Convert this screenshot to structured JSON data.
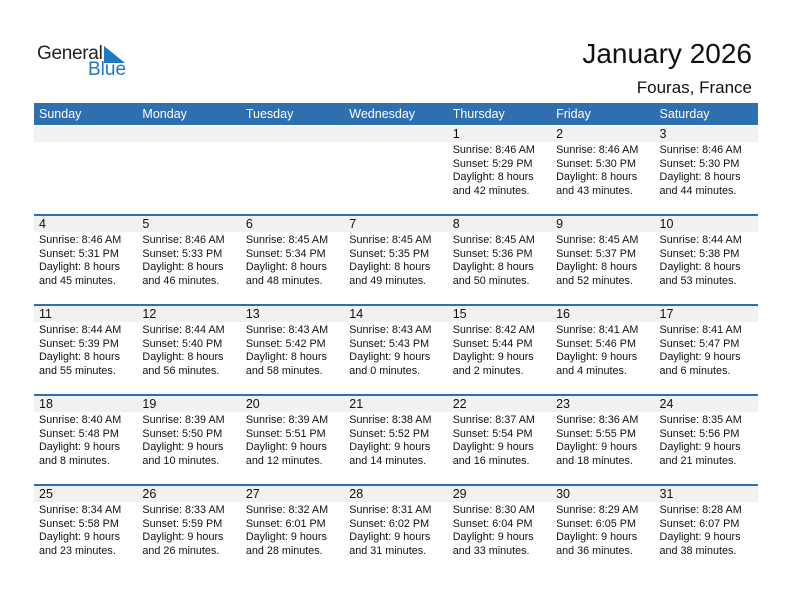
{
  "logo": {
    "text1": "General",
    "text2": "Blue",
    "color": "#1f78c1"
  },
  "header": {
    "title": "January 2026",
    "location": "Fouras, France"
  },
  "weekdays": [
    "Sunday",
    "Monday",
    "Tuesday",
    "Wednesday",
    "Thursday",
    "Friday",
    "Saturday"
  ],
  "colors": {
    "header_bg": "#2e6fb0",
    "date_strip": "#f1f1f1"
  },
  "weeks": [
    [
      null,
      null,
      null,
      null,
      {
        "day": "1",
        "sunrise": "Sunrise: 8:46 AM",
        "sunset": "Sunset: 5:29 PM",
        "daylight1": "Daylight: 8 hours",
        "daylight2": "and 42 minutes."
      },
      {
        "day": "2",
        "sunrise": "Sunrise: 8:46 AM",
        "sunset": "Sunset: 5:30 PM",
        "daylight1": "Daylight: 8 hours",
        "daylight2": "and 43 minutes."
      },
      {
        "day": "3",
        "sunrise": "Sunrise: 8:46 AM",
        "sunset": "Sunset: 5:30 PM",
        "daylight1": "Daylight: 8 hours",
        "daylight2": "and 44 minutes."
      }
    ],
    [
      {
        "day": "4",
        "sunrise": "Sunrise: 8:46 AM",
        "sunset": "Sunset: 5:31 PM",
        "daylight1": "Daylight: 8 hours",
        "daylight2": "and 45 minutes."
      },
      {
        "day": "5",
        "sunrise": "Sunrise: 8:46 AM",
        "sunset": "Sunset: 5:33 PM",
        "daylight1": "Daylight: 8 hours",
        "daylight2": "and 46 minutes."
      },
      {
        "day": "6",
        "sunrise": "Sunrise: 8:45 AM",
        "sunset": "Sunset: 5:34 PM",
        "daylight1": "Daylight: 8 hours",
        "daylight2": "and 48 minutes."
      },
      {
        "day": "7",
        "sunrise": "Sunrise: 8:45 AM",
        "sunset": "Sunset: 5:35 PM",
        "daylight1": "Daylight: 8 hours",
        "daylight2": "and 49 minutes."
      },
      {
        "day": "8",
        "sunrise": "Sunrise: 8:45 AM",
        "sunset": "Sunset: 5:36 PM",
        "daylight1": "Daylight: 8 hours",
        "daylight2": "and 50 minutes."
      },
      {
        "day": "9",
        "sunrise": "Sunrise: 8:45 AM",
        "sunset": "Sunset: 5:37 PM",
        "daylight1": "Daylight: 8 hours",
        "daylight2": "and 52 minutes."
      },
      {
        "day": "10",
        "sunrise": "Sunrise: 8:44 AM",
        "sunset": "Sunset: 5:38 PM",
        "daylight1": "Daylight: 8 hours",
        "daylight2": "and 53 minutes."
      }
    ],
    [
      {
        "day": "11",
        "sunrise": "Sunrise: 8:44 AM",
        "sunset": "Sunset: 5:39 PM",
        "daylight1": "Daylight: 8 hours",
        "daylight2": "and 55 minutes."
      },
      {
        "day": "12",
        "sunrise": "Sunrise: 8:44 AM",
        "sunset": "Sunset: 5:40 PM",
        "daylight1": "Daylight: 8 hours",
        "daylight2": "and 56 minutes."
      },
      {
        "day": "13",
        "sunrise": "Sunrise: 8:43 AM",
        "sunset": "Sunset: 5:42 PM",
        "daylight1": "Daylight: 8 hours",
        "daylight2": "and 58 minutes."
      },
      {
        "day": "14",
        "sunrise": "Sunrise: 8:43 AM",
        "sunset": "Sunset: 5:43 PM",
        "daylight1": "Daylight: 9 hours",
        "daylight2": "and 0 minutes."
      },
      {
        "day": "15",
        "sunrise": "Sunrise: 8:42 AM",
        "sunset": "Sunset: 5:44 PM",
        "daylight1": "Daylight: 9 hours",
        "daylight2": "and 2 minutes."
      },
      {
        "day": "16",
        "sunrise": "Sunrise: 8:41 AM",
        "sunset": "Sunset: 5:46 PM",
        "daylight1": "Daylight: 9 hours",
        "daylight2": "and 4 minutes."
      },
      {
        "day": "17",
        "sunrise": "Sunrise: 8:41 AM",
        "sunset": "Sunset: 5:47 PM",
        "daylight1": "Daylight: 9 hours",
        "daylight2": "and 6 minutes."
      }
    ],
    [
      {
        "day": "18",
        "sunrise": "Sunrise: 8:40 AM",
        "sunset": "Sunset: 5:48 PM",
        "daylight1": "Daylight: 9 hours",
        "daylight2": "and 8 minutes."
      },
      {
        "day": "19",
        "sunrise": "Sunrise: 8:39 AM",
        "sunset": "Sunset: 5:50 PM",
        "daylight1": "Daylight: 9 hours",
        "daylight2": "and 10 minutes."
      },
      {
        "day": "20",
        "sunrise": "Sunrise: 8:39 AM",
        "sunset": "Sunset: 5:51 PM",
        "daylight1": "Daylight: 9 hours",
        "daylight2": "and 12 minutes."
      },
      {
        "day": "21",
        "sunrise": "Sunrise: 8:38 AM",
        "sunset": "Sunset: 5:52 PM",
        "daylight1": "Daylight: 9 hours",
        "daylight2": "and 14 minutes."
      },
      {
        "day": "22",
        "sunrise": "Sunrise: 8:37 AM",
        "sunset": "Sunset: 5:54 PM",
        "daylight1": "Daylight: 9 hours",
        "daylight2": "and 16 minutes."
      },
      {
        "day": "23",
        "sunrise": "Sunrise: 8:36 AM",
        "sunset": "Sunset: 5:55 PM",
        "daylight1": "Daylight: 9 hours",
        "daylight2": "and 18 minutes."
      },
      {
        "day": "24",
        "sunrise": "Sunrise: 8:35 AM",
        "sunset": "Sunset: 5:56 PM",
        "daylight1": "Daylight: 9 hours",
        "daylight2": "and 21 minutes."
      }
    ],
    [
      {
        "day": "25",
        "sunrise": "Sunrise: 8:34 AM",
        "sunset": "Sunset: 5:58 PM",
        "daylight1": "Daylight: 9 hours",
        "daylight2": "and 23 minutes."
      },
      {
        "day": "26",
        "sunrise": "Sunrise: 8:33 AM",
        "sunset": "Sunset: 5:59 PM",
        "daylight1": "Daylight: 9 hours",
        "daylight2": "and 26 minutes."
      },
      {
        "day": "27",
        "sunrise": "Sunrise: 8:32 AM",
        "sunset": "Sunset: 6:01 PM",
        "daylight1": "Daylight: 9 hours",
        "daylight2": "and 28 minutes."
      },
      {
        "day": "28",
        "sunrise": "Sunrise: 8:31 AM",
        "sunset": "Sunset: 6:02 PM",
        "daylight1": "Daylight: 9 hours",
        "daylight2": "and 31 minutes."
      },
      {
        "day": "29",
        "sunrise": "Sunrise: 8:30 AM",
        "sunset": "Sunset: 6:04 PM",
        "daylight1": "Daylight: 9 hours",
        "daylight2": "and 33 minutes."
      },
      {
        "day": "30",
        "sunrise": "Sunrise: 8:29 AM",
        "sunset": "Sunset: 6:05 PM",
        "daylight1": "Daylight: 9 hours",
        "daylight2": "and 36 minutes."
      },
      {
        "day": "31",
        "sunrise": "Sunrise: 8:28 AM",
        "sunset": "Sunset: 6:07 PM",
        "daylight1": "Daylight: 9 hours",
        "daylight2": "and 38 minutes."
      }
    ]
  ]
}
